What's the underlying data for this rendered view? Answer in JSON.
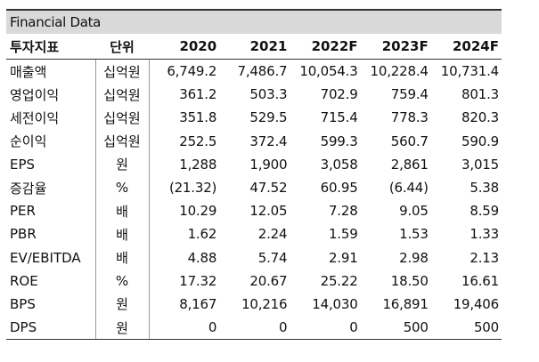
{
  "title": "Financial Data",
  "headers": [
    "투자지표",
    "단위",
    "2020",
    "2021",
    "2022F",
    "2023F",
    "2024F"
  ],
  "rows": [
    {
      "label": "매출액",
      "unit": "십억원",
      "values": [
        "6,749.2",
        "7,486.7",
        "10,054.3",
        "10,228.4",
        "10,731.4"
      ]
    },
    {
      "label": "영업이익",
      "unit": "십억원",
      "values": [
        "361.2",
        "503.3",
        "702.9",
        "759.4",
        "801.3"
      ]
    },
    {
      "label": "세전이익",
      "unit": "십억원",
      "values": [
        "351.8",
        "529.5",
        "715.4",
        "778.3",
        "820.3"
      ]
    },
    {
      "label": "순이익",
      "unit": "십억원",
      "values": [
        "252.5",
        "372.4",
        "599.3",
        "560.7",
        "590.9"
      ]
    },
    {
      "label": "EPS",
      "unit": "원",
      "values": [
        "1,288",
        "1,900",
        "3,058",
        "2,861",
        "3,015"
      ]
    },
    {
      "label": "증감율",
      "unit": "%",
      "values": [
        "(21.32)",
        "47.52",
        "60.95",
        "(6.44)",
        "5.38"
      ]
    },
    {
      "label": "PER",
      "unit": "배",
      "values": [
        "10.29",
        "12.05",
        "7.28",
        "9.05",
        "8.59"
      ]
    },
    {
      "label": "PBR",
      "unit": "배",
      "values": [
        "1.62",
        "2.24",
        "1.59",
        "1.53",
        "1.33"
      ]
    },
    {
      "label": "EV/EBITDA",
      "unit": "배",
      "values": [
        "4.88",
        "5.74",
        "2.91",
        "2.98",
        "2.13"
      ]
    },
    {
      "label": "ROE",
      "unit": "%",
      "values": [
        "17.32",
        "20.67",
        "25.22",
        "18.50",
        "16.61"
      ]
    },
    {
      "label": "BPS",
      "unit": "원",
      "values": [
        "8,167",
        "10,216",
        "14,030",
        "16,891",
        "19,406"
      ]
    },
    {
      "label": "DPS",
      "unit": "원",
      "values": [
        "0",
        "0",
        "0",
        "500",
        "500"
      ]
    }
  ]
}
